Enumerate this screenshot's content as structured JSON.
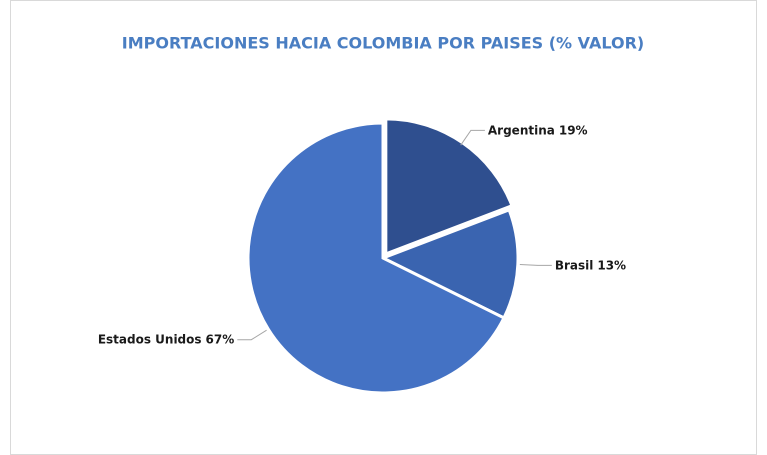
{
  "chart_data": {
    "type": "pie",
    "title": "IMPORTACIONES HACIA COLOMBIA POR PAISES (% VALOR)",
    "categories": [
      "Argentina",
      "Brasil",
      "Estados Unidos"
    ],
    "values": [
      19,
      13,
      67
    ],
    "value_labels": [
      "19%",
      "13%",
      "67%"
    ],
    "colors": [
      "#2f4f8f",
      "#3a64b0",
      "#4472c4"
    ]
  }
}
